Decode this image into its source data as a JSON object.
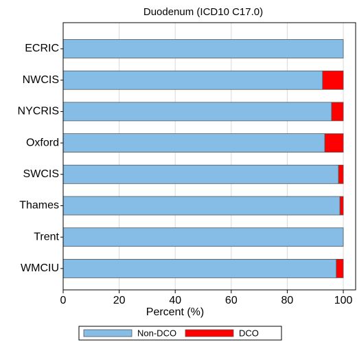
{
  "chart_data": {
    "type": "stacked-bar-horizontal",
    "title": "Duodenum (ICD10 C17.0)",
    "x_label": "Percent (%)",
    "categories": [
      "ECRIC",
      "NWCIS",
      "NYCRIS",
      "Oxford",
      "SWCIS",
      "Thames",
      "Trent",
      "WMCIU"
    ],
    "series": [
      {
        "name": "Non-DCO",
        "color": "#85bde6",
        "values": [
          100,
          92.6,
          95.8,
          93.4,
          98.3,
          98.8,
          100,
          97.5
        ]
      },
      {
        "name": "DCO",
        "color": "#ff0000",
        "values": [
          0,
          7.4,
          4.2,
          6.6,
          1.7,
          1.2,
          0,
          2.5
        ]
      }
    ],
    "xlim": [
      0,
      104.4
    ],
    "xticks": [
      0,
      20,
      40,
      60,
      80,
      100
    ],
    "grid": true,
    "legend": "bottom"
  }
}
